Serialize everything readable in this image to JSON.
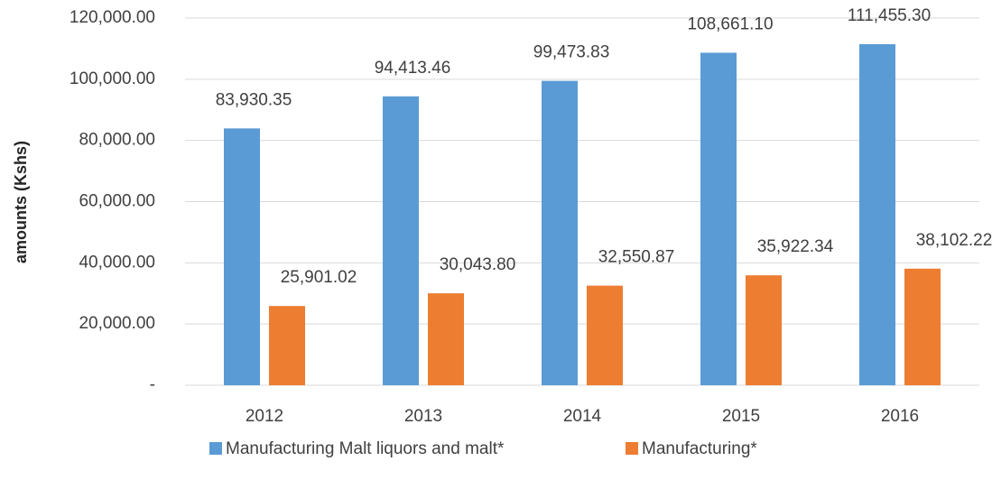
{
  "chart_data": {
    "type": "bar",
    "ylabel": "amounts (Kshs)",
    "categories": [
      "2012",
      "2013",
      "2014",
      "2015",
      "2016"
    ],
    "series": [
      {
        "name": "Manufacturing Malt liquors and malt*",
        "color": "#5b9bd5",
        "values": [
          83930.35,
          94413.46,
          99473.83,
          108661.1,
          111455.3
        ],
        "value_labels": [
          "83,930.35",
          "94,413.46",
          "99,473.83",
          "108,661.10",
          "111,455.30"
        ]
      },
      {
        "name": "Manufacturing*",
        "color": "#ed7d31",
        "values": [
          25901.02,
          30043.8,
          32550.87,
          35922.34,
          38102.22
        ],
        "value_labels": [
          "25,901.02",
          "30,043.80",
          "32,550.87",
          "35,922.34",
          "38,102.22"
        ]
      }
    ],
    "ylim": [
      0,
      120000
    ],
    "yticks": [
      {
        "value": 0,
        "label": "-"
      },
      {
        "value": 20000,
        "label": "20,000.00"
      },
      {
        "value": 40000,
        "label": "40,000.00"
      },
      {
        "value": 60000,
        "label": "60,000.00"
      },
      {
        "value": 80000,
        "label": "80,000.00"
      },
      {
        "value": 100000,
        "label": "100,000.00"
      },
      {
        "value": 120000,
        "label": "120,000.00"
      }
    ],
    "grid": true,
    "legend": "bottom"
  }
}
